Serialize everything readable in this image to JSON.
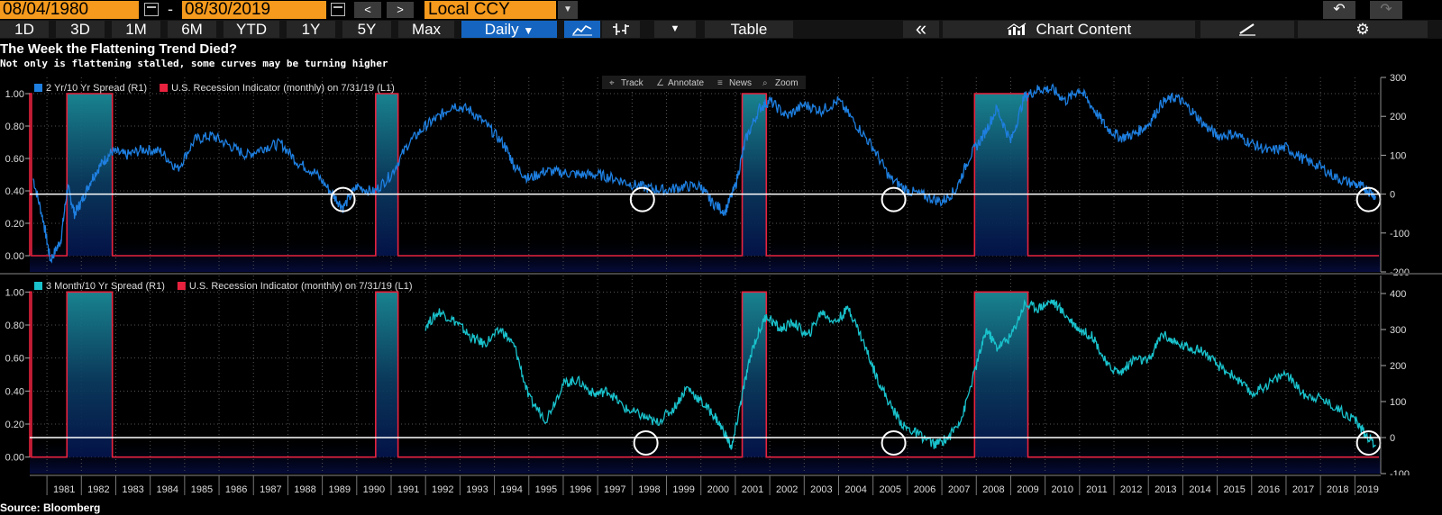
{
  "toolbar": {
    "start_date": "08/04/1980",
    "end_date": "08/30/2019",
    "date_separator": "-",
    "prev_label": "<",
    "next_label": ">",
    "currency": "Local CCY",
    "periods": [
      "1D",
      "3D",
      "1M",
      "6M",
      "YTD",
      "1Y",
      "5Y",
      "Max"
    ],
    "frequency": "Daily",
    "table_label": "Table",
    "collapse_label": "«",
    "chart_content_label": "Chart Content"
  },
  "title": "The Week the Flattening Trend Died?",
  "subtitle": "Not only is flattening stalled, some curves may be turning higher",
  "chart_tools": [
    "Track",
    "Annotate",
    "News",
    "Zoom"
  ],
  "source": "Source: Bloomberg",
  "colors": {
    "spread_2y10y": "#1e7fe0",
    "spread_3m10y": "#19c2cc",
    "recession": "#e8223e",
    "reference": "#ffffff"
  },
  "chart_data": [
    {
      "type": "line",
      "legend": [
        {
          "name": "2 Yr/10 Yr Spread (R1)",
          "color": "#1e7fe0"
        },
        {
          "name": "U.S. Recession Indicator (monthly)  on 7/31/19 (L1)",
          "color": "#e8223e"
        }
      ],
      "left_axis": {
        "ticks": [
          "1.00",
          "0.80",
          "0.60",
          "0.40",
          "0.20",
          "0.00"
        ],
        "min": -0.1,
        "max": 1.1
      },
      "right_axis": {
        "ticks": [
          "300",
          "200",
          "100",
          "0",
          "-100",
          "-200"
        ],
        "min": -200,
        "max": 300
      },
      "reference_line_value": 0,
      "recessions": [
        [
          1980.5,
          1980.55
        ],
        [
          1981.58,
          1982.9
        ],
        [
          1990.55,
          1991.2
        ],
        [
          2001.2,
          2001.9
        ],
        [
          2007.95,
          2009.5
        ]
      ],
      "series": [
        {
          "name": "2 Yr/10 Yr Spread",
          "axis": "right",
          "x": [
            1980.6,
            1980.9,
            1981.1,
            1981.4,
            1981.6,
            1981.8,
            1982.0,
            1982.3,
            1982.6,
            1982.9,
            1983.3,
            1983.8,
            1984.3,
            1984.8,
            1985.3,
            1985.8,
            1986.3,
            1986.8,
            1987.3,
            1987.8,
            1988.3,
            1988.8,
            1989.3,
            1989.6,
            1990.0,
            1990.5,
            1991.0,
            1991.5,
            1992.0,
            1992.4,
            1992.8,
            1993.3,
            1993.8,
            1994.3,
            1994.6,
            1995.0,
            1995.5,
            1996.0,
            1996.5,
            1997.0,
            1997.5,
            1998.0,
            1998.5,
            1999.0,
            1999.5,
            2000.0,
            2000.3,
            2000.7,
            2001.0,
            2001.3,
            2001.7,
            2002.0,
            2002.5,
            2003.0,
            2003.5,
            2004.0,
            2004.5,
            2005.0,
            2005.5,
            2006.0,
            2006.5,
            2007.0,
            2007.4,
            2007.8,
            2008.2,
            2008.6,
            2009.0,
            2009.4,
            2009.8,
            2010.2,
            2010.6,
            2011.0,
            2011.4,
            2011.8,
            2012.2,
            2012.6,
            2013.0,
            2013.4,
            2013.8,
            2014.2,
            2014.6,
            2015.0,
            2015.5,
            2016.0,
            2016.5,
            2017.0,
            2017.5,
            2018.0,
            2018.5,
            2019.0,
            2019.3,
            2019.6
          ],
          "values": [
            40,
            -70,
            -170,
            -120,
            20,
            -50,
            -20,
            40,
            80,
            110,
            100,
            115,
            110,
            65,
            140,
            150,
            125,
            100,
            120,
            130,
            80,
            55,
            0,
            -35,
            20,
            5,
            50,
            130,
            175,
            200,
            230,
            215,
            175,
            125,
            70,
            40,
            60,
            55,
            50,
            50,
            40,
            25,
            15,
            10,
            20,
            20,
            -20,
            -45,
            20,
            140,
            220,
            240,
            200,
            230,
            215,
            240,
            180,
            120,
            40,
            10,
            -5,
            -20,
            10,
            95,
            150,
            220,
            135,
            250,
            270,
            270,
            240,
            270,
            220,
            170,
            145,
            155,
            180,
            235,
            250,
            220,
            180,
            150,
            155,
            130,
            110,
            120,
            90,
            70,
            40,
            25,
            15,
            -5
          ]
        }
      ],
      "circles_at": [
        1989.6,
        1998.3,
        2005.6,
        2019.4
      ]
    },
    {
      "type": "line",
      "legend": [
        {
          "name": "3 Month/10 Yr Spread (R1)",
          "color": "#19c2cc"
        },
        {
          "name": "U.S. Recession Indicator (monthly)  on 7/31/19 (L1)",
          "color": "#e8223e"
        }
      ],
      "left_axis": {
        "ticks": [
          "1.00",
          "0.80",
          "0.60",
          "0.40",
          "0.20",
          "0.00"
        ],
        "min": -0.1,
        "max": 1.1
      },
      "right_axis": {
        "ticks": [
          "400",
          "300",
          "200",
          "100",
          "0",
          "-100"
        ],
        "min": -100,
        "max": 450
      },
      "reference_line_value": 0,
      "recessions": [
        [
          1980.5,
          1980.55
        ],
        [
          1981.58,
          1982.9
        ],
        [
          1990.55,
          1991.2
        ],
        [
          2001.2,
          2001.9
        ],
        [
          2007.95,
          2009.5
        ]
      ],
      "series": [
        {
          "name": "3 Month/10 Yr Spread",
          "axis": "right",
          "x": [
            1992.0,
            1992.4,
            1992.9,
            1993.3,
            1993.7,
            1994.2,
            1994.6,
            1995.0,
            1995.5,
            1996.0,
            1996.4,
            1996.9,
            1997.3,
            1997.8,
            1998.3,
            1998.7,
            1999.2,
            1999.6,
            2000.0,
            2000.4,
            2000.7,
            2000.9,
            2001.2,
            2001.5,
            2001.9,
            2002.3,
            2002.7,
            2003.1,
            2003.5,
            2003.9,
            2004.3,
            2004.7,
            2005.1,
            2005.5,
            2005.9,
            2006.3,
            2006.8,
            2007.2,
            2007.6,
            2008.0,
            2008.3,
            2008.6,
            2009.0,
            2009.4,
            2009.8,
            2010.2,
            2010.6,
            2011.0,
            2011.4,
            2011.8,
            2012.2,
            2012.6,
            2013.0,
            2013.4,
            2013.8,
            2014.2,
            2014.6,
            2015.0,
            2015.5,
            2016.0,
            2016.5,
            2017.0,
            2017.5,
            2018.0,
            2018.5,
            2019.0,
            2019.3,
            2019.6
          ],
          "values": [
            310,
            350,
            320,
            280,
            260,
            300,
            250,
            110,
            50,
            150,
            160,
            120,
            130,
            80,
            60,
            40,
            80,
            140,
            100,
            60,
            10,
            -30,
            120,
            250,
            340,
            300,
            320,
            280,
            350,
            320,
            360,
            270,
            170,
            90,
            30,
            10,
            -20,
            0,
            60,
            200,
            300,
            250,
            280,
            370,
            360,
            380,
            340,
            300,
            280,
            200,
            180,
            220,
            210,
            290,
            260,
            250,
            240,
            200,
            170,
            120,
            150,
            180,
            120,
            110,
            80,
            50,
            10,
            -20
          ]
        }
      ],
      "circles_at": [
        1998.4,
        2005.6,
        2019.4
      ]
    }
  ],
  "x_axis": {
    "labels": [
      "1981",
      "1982",
      "1983",
      "1984",
      "1985",
      "1986",
      "1987",
      "1988",
      "1989",
      "1990",
      "1991",
      "1992",
      "1993",
      "1994",
      "1995",
      "1996",
      "1997",
      "1998",
      "1999",
      "2000",
      "2001",
      "2002",
      "2003",
      "2004",
      "2005",
      "2006",
      "2007",
      "2008",
      "2009",
      "2010",
      "2011",
      "2012",
      "2013",
      "2014",
      "2015",
      "2016",
      "2017",
      "2018",
      "2019"
    ],
    "min": 1980.5,
    "max": 2019.75
  }
}
